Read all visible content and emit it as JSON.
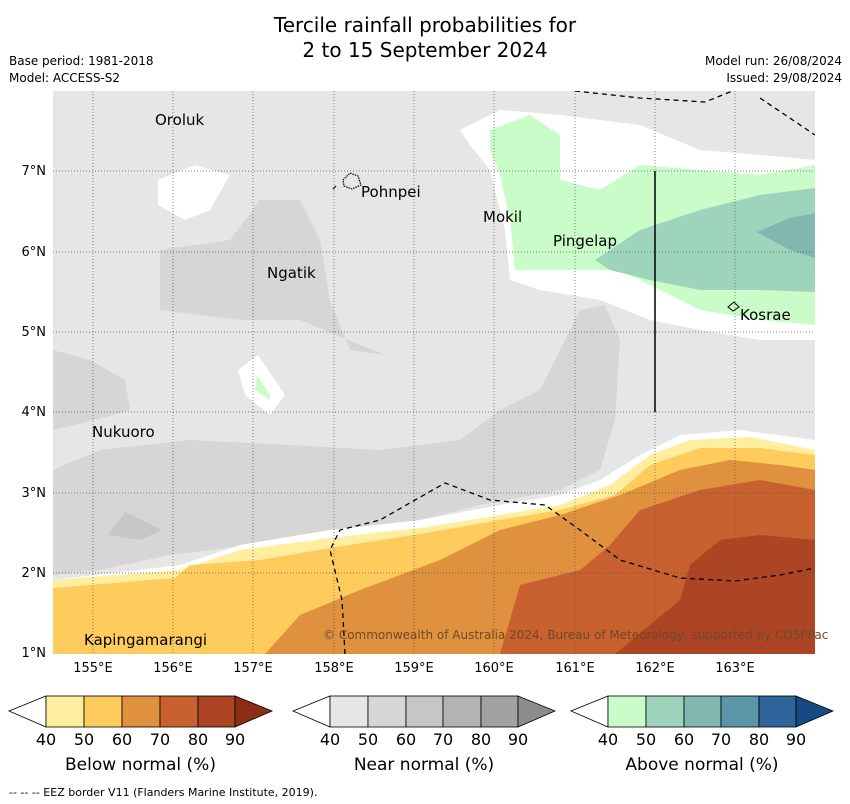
{
  "title_line1": "Tercile rainfall probabilities for",
  "title_line2": "2 to 15 September 2024",
  "meta": {
    "base_period": "Base period: 1981-2018",
    "model": "Model: ACCESS-S2",
    "model_run": "Model run: 26/08/2024",
    "issued": "Issued: 29/08/2024"
  },
  "map": {
    "lon_range": [
      154.5,
      164.0
    ],
    "lat_range": [
      1.0,
      8.0
    ],
    "lat_ticks": [
      "7°N",
      "6°N",
      "5°N",
      "4°N",
      "3°N",
      "2°N",
      "1°N"
    ],
    "lon_ticks": [
      "155°E",
      "156°E",
      "157°E",
      "158°E",
      "159°E",
      "160°E",
      "161°E",
      "162°E",
      "163°E"
    ],
    "places": [
      {
        "name": "Oroluk"
      },
      {
        "name": "Pohnpei"
      },
      {
        "name": "Mokil"
      },
      {
        "name": "Pingelap"
      },
      {
        "name": "Ngatik"
      },
      {
        "name": "Kosrae"
      },
      {
        "name": "Nukuoro"
      },
      {
        "name": "Kapingamarangi"
      }
    ],
    "copyright": "© Commonwealth of Australia 2024, Bureau of Meteorology, supported by COSPPac"
  },
  "colorbars": [
    {
      "title": "Below normal (%)",
      "ticks": [
        "40",
        "50",
        "60",
        "70",
        "80",
        "90"
      ],
      "colors": [
        "#ffffff",
        "#ffeda0",
        "#fecc5c",
        "#e0913e",
        "#c9602f",
        "#ad4424",
        "#8c2e14"
      ]
    },
    {
      "title": "Near normal (%)",
      "ticks": [
        "40",
        "50",
        "60",
        "70",
        "80",
        "90"
      ],
      "colors": [
        "#ffffff",
        "#e6e6e6",
        "#d6d6d6",
        "#c6c6c6",
        "#b3b3b3",
        "#a2a2a2",
        "#8c8c8c"
      ]
    },
    {
      "title": "Above normal (%)",
      "ticks": [
        "40",
        "50",
        "60",
        "70",
        "80",
        "90"
      ],
      "colors": [
        "#ffffff",
        "#c9fcc9",
        "#9ed4bc",
        "#80b8b0",
        "#5a96a8",
        "#30659c",
        "#164a85"
      ]
    }
  ],
  "footnote": "--  --  -- EEZ border V11 (Flanders Marine Institute, 2019)."
}
